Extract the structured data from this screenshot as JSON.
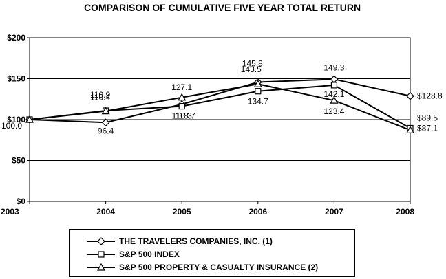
{
  "chart_data": {
    "type": "line",
    "title": "COMPARISON OF CUMULATIVE FIVE YEAR TOTAL RETURN",
    "x": [
      "2003",
      "2004",
      "2005",
      "2006",
      "2007",
      "2008"
    ],
    "ylim": [
      0,
      200
    ],
    "yticks": [
      "$0",
      "$50",
      "$100",
      "$150",
      "$200"
    ],
    "ytick_values": [
      0,
      50,
      100,
      150,
      200
    ],
    "grid": true,
    "legend_position": "bottom",
    "series": [
      {
        "name": "THE TRAVELERS COMPANIES, INC. (1)",
        "marker": "diamond",
        "values": [
          100.0,
          96.4,
          118.7,
          145.8,
          149.3,
          128.8
        ],
        "labels": [
          "100.0",
          "96.4",
          "118.7",
          "145.8",
          "149.3",
          "$128.8"
        ]
      },
      {
        "name": "S&P 500 INDEX",
        "marker": "square",
        "values": [
          100.0,
          110.9,
          116.3,
          134.7,
          142.1,
          89.5
        ],
        "labels": [
          "",
          "110.9",
          "116.3",
          "134.7",
          "142.1",
          "$89.5"
        ]
      },
      {
        "name": "S&P 500 PROPERTY & CASUALTY INSURANCE (2)",
        "marker": "triangle",
        "values": [
          100.0,
          110.4,
          127.1,
          143.5,
          123.4,
          87.1
        ],
        "labels": [
          "",
          "110.4",
          "127.1",
          "143.5",
          "123.4",
          "$87.1"
        ]
      }
    ]
  }
}
